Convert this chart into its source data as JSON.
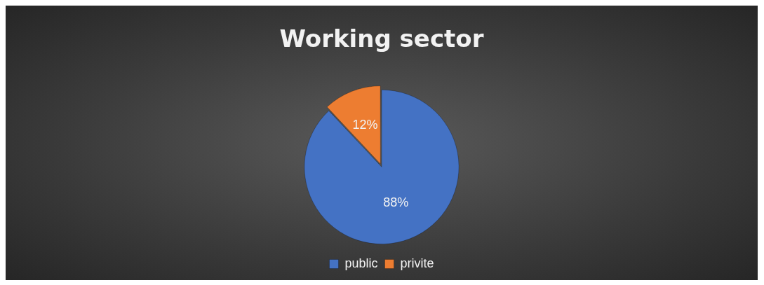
{
  "chart_data": {
    "type": "pie",
    "title": "Working sector",
    "categories": [
      "public",
      "privite"
    ],
    "values": [
      88,
      12
    ],
    "colors": [
      "#4472c4",
      "#ed7d31"
    ],
    "value_labels": [
      "88%",
      "12%"
    ],
    "legend": "bottom"
  }
}
